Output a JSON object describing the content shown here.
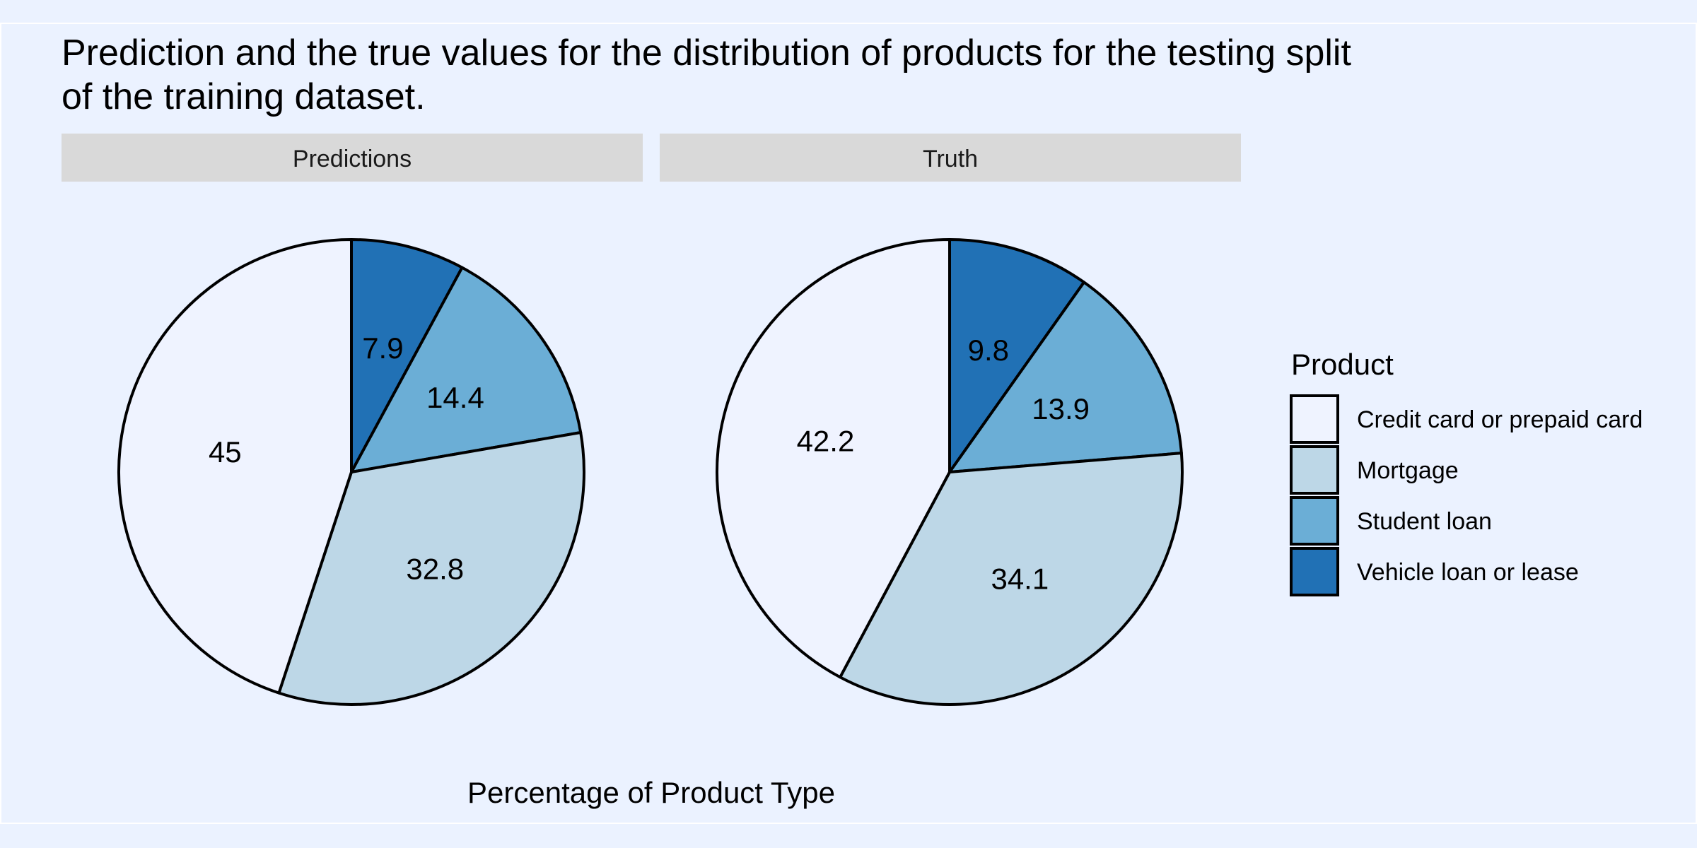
{
  "chart_data": {
    "type": "pie",
    "title_lines": [
      "Prediction and the true values for the distribution of products for the testing split",
      "of the training dataset."
    ],
    "xlabel": "Percentage of Product Type",
    "legend_title": "Product",
    "legend_placement": "right",
    "categories": [
      "Credit card or prepaid card",
      "Mortgage",
      "Student loan",
      "Vehicle loan or lease"
    ],
    "colors": [
      "#eff3ff",
      "#bdd7e7",
      "#6baed6",
      "#2171b5"
    ],
    "panels": [
      {
        "name": "Predictions",
        "values": [
          45,
          32.8,
          14.4,
          7.9
        ],
        "labels": [
          "45",
          "32.8",
          "14.4",
          "7.9"
        ]
      },
      {
        "name": "Truth",
        "values": [
          42.2,
          34.1,
          13.9,
          9.8
        ],
        "labels": [
          "42.2",
          "34.1",
          "13.9",
          "9.8"
        ]
      }
    ]
  }
}
